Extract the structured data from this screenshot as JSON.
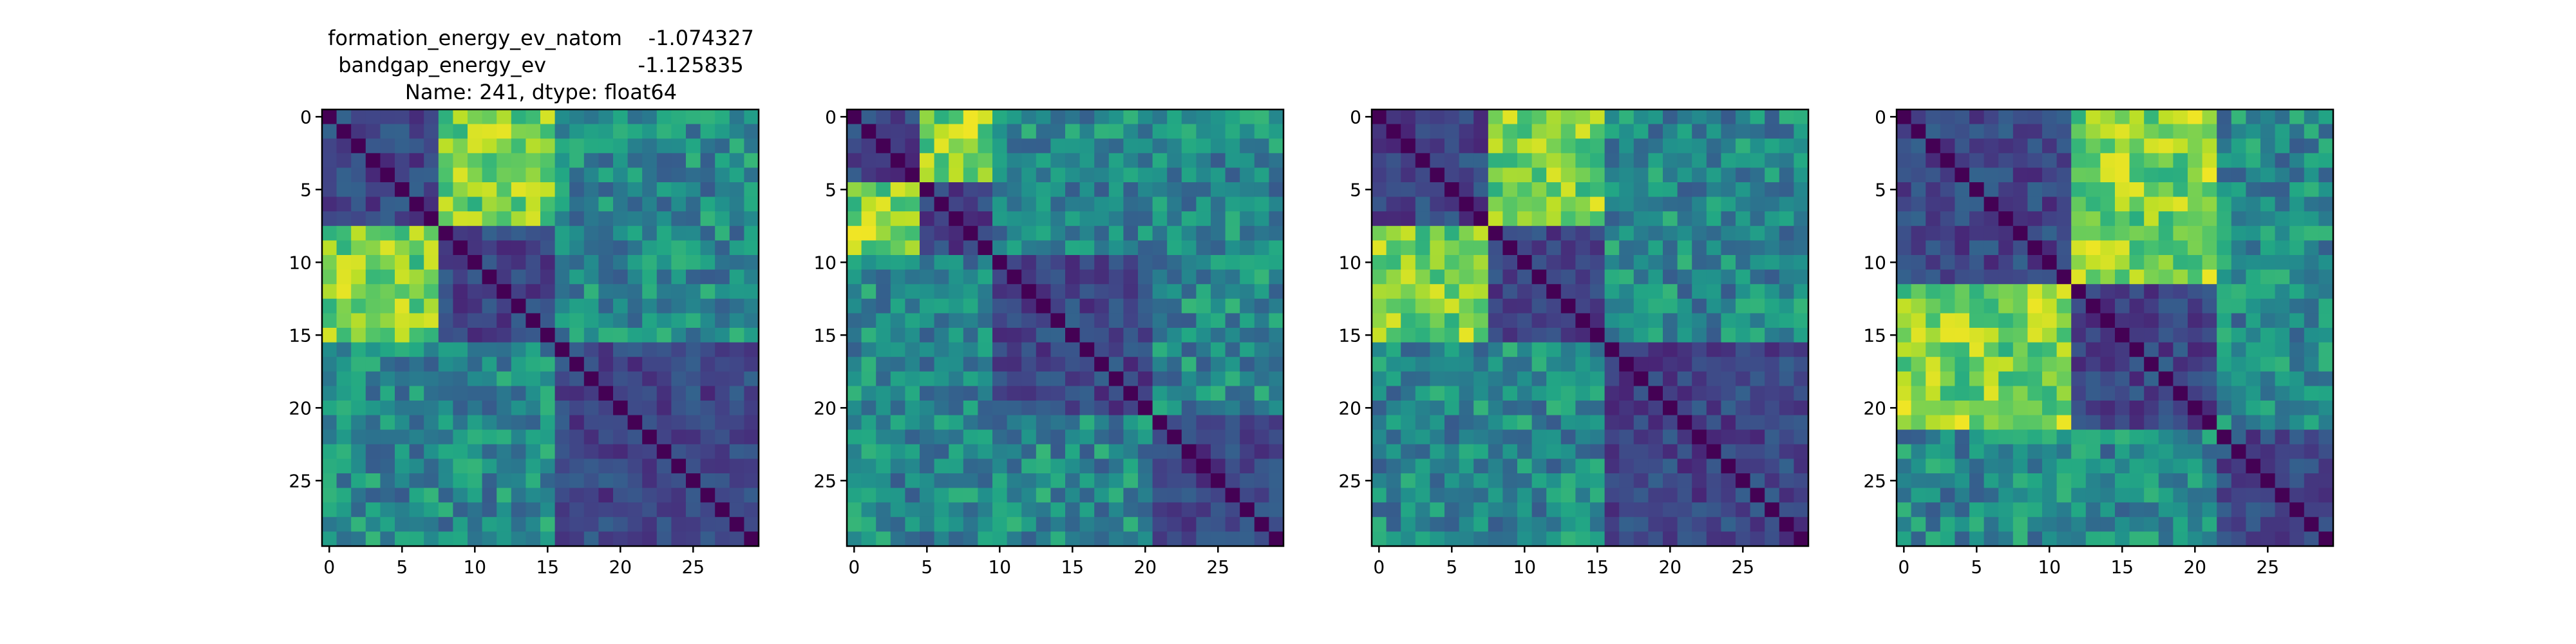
{
  "title_lines": [
    "formation_energy_ev_natom    -1.074327",
    "bandgap_energy_ev              -1.125835",
    "Name: 241, dtype: float64"
  ],
  "chart_data": [
    {
      "type": "heatmap",
      "colormap": "viridis",
      "n": 30,
      "blocks": [
        [
          0,
          7
        ],
        [
          8,
          15
        ],
        [
          16,
          29
        ]
      ],
      "xticks": [
        0,
        5,
        10,
        15,
        20,
        25
      ],
      "yticks": [
        0,
        5,
        10,
        15,
        20,
        25
      ],
      "xlim": [
        -0.5,
        29.5
      ],
      "ylim": [
        29.5,
        -0.5
      ]
    },
    {
      "type": "heatmap",
      "colormap": "viridis",
      "n": 30,
      "blocks": [
        [
          0,
          4
        ],
        [
          5,
          9
        ],
        [
          10,
          20
        ],
        [
          21,
          29
        ]
      ],
      "xticks": [
        0,
        5,
        10,
        15,
        20,
        25
      ],
      "yticks": [
        0,
        5,
        10,
        15,
        20,
        25
      ],
      "xlim": [
        -0.5,
        29.5
      ],
      "ylim": [
        29.5,
        -0.5
      ]
    },
    {
      "type": "heatmap",
      "colormap": "viridis",
      "n": 30,
      "blocks": [
        [
          0,
          7
        ],
        [
          8,
          15
        ],
        [
          16,
          29
        ]
      ],
      "xticks": [
        0,
        5,
        10,
        15,
        20,
        25
      ],
      "yticks": [
        0,
        5,
        10,
        15,
        20,
        25
      ],
      "xlim": [
        -0.5,
        29.5
      ],
      "ylim": [
        29.5,
        -0.5
      ]
    },
    {
      "type": "heatmap",
      "colormap": "viridis",
      "n": 30,
      "blocks": [
        [
          0,
          11
        ],
        [
          12,
          21
        ],
        [
          22,
          29
        ]
      ],
      "xticks": [
        0,
        5,
        10,
        15,
        20,
        25
      ],
      "yticks": [
        0,
        5,
        10,
        15,
        20,
        25
      ],
      "xlim": [
        -0.5,
        29.5
      ],
      "ylim": [
        29.5,
        -0.5
      ]
    }
  ]
}
